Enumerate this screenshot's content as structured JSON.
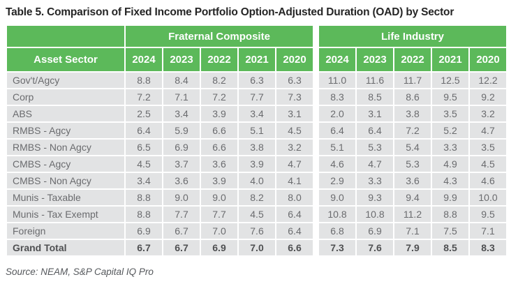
{
  "page": {
    "title": "Table 5. Comparison of Fixed Income Portfolio Option-Adjusted Duration (OAD) by Sector",
    "source": "Source: NEAM, S&P Capital IQ Pro"
  },
  "colors": {
    "header_green": "#5cb95a",
    "row_gray": "#e2e3e4",
    "header_text": "#ffffff",
    "data_text": "#6a6b6e",
    "title_text": "#252525"
  },
  "chart_data": {
    "type": "table",
    "title": "Table 5. Comparison of Fixed Income Portfolio Option-Adjusted Duration (OAD) by Sector",
    "asset_sector_label": "Asset Sector",
    "groups": [
      "Fraternal Composite",
      "Life Industry"
    ],
    "years": [
      "2024",
      "2023",
      "2022",
      "2021",
      "2020"
    ],
    "rows": [
      {
        "sector": "Gov't/Agcy",
        "fraternal": [
          8.8,
          8.4,
          8.2,
          6.3,
          6.3
        ],
        "life": [
          11.0,
          11.6,
          11.7,
          12.5,
          12.2
        ]
      },
      {
        "sector": "Corp",
        "fraternal": [
          7.2,
          7.1,
          7.2,
          7.7,
          7.3
        ],
        "life": [
          8.3,
          8.5,
          8.6,
          9.5,
          9.2
        ]
      },
      {
        "sector": "ABS",
        "fraternal": [
          2.5,
          3.4,
          3.9,
          3.4,
          3.1
        ],
        "life": [
          2.0,
          3.1,
          3.8,
          3.5,
          3.2
        ]
      },
      {
        "sector": "RMBS - Agcy",
        "fraternal": [
          6.4,
          5.9,
          6.6,
          5.1,
          4.5
        ],
        "life": [
          6.4,
          6.4,
          7.2,
          5.2,
          4.7
        ]
      },
      {
        "sector": "RMBS - Non Agcy",
        "fraternal": [
          6.5,
          6.9,
          6.6,
          3.8,
          3.2
        ],
        "life": [
          5.1,
          5.3,
          5.4,
          3.3,
          3.5
        ]
      },
      {
        "sector": "CMBS - Agcy",
        "fraternal": [
          4.5,
          3.7,
          3.6,
          3.9,
          4.7
        ],
        "life": [
          4.6,
          4.7,
          5.3,
          4.9,
          4.5
        ]
      },
      {
        "sector": "CMBS - Non Agcy",
        "fraternal": [
          3.4,
          3.6,
          3.9,
          4.0,
          4.1
        ],
        "life": [
          2.9,
          3.3,
          3.6,
          4.3,
          4.6
        ]
      },
      {
        "sector": "Munis - Taxable",
        "fraternal": [
          8.8,
          9.0,
          9.0,
          8.2,
          8.0
        ],
        "life": [
          9.0,
          9.3,
          9.4,
          9.9,
          10.0
        ]
      },
      {
        "sector": "Munis - Tax Exempt",
        "fraternal": [
          8.8,
          7.7,
          7.7,
          4.5,
          6.4
        ],
        "life": [
          10.8,
          10.8,
          11.2,
          8.8,
          9.5
        ]
      },
      {
        "sector": "Foreign",
        "fraternal": [
          6.9,
          6.7,
          7.0,
          7.6,
          6.4
        ],
        "life": [
          6.8,
          6.9,
          7.1,
          7.5,
          7.1
        ]
      }
    ],
    "grand_total": {
      "sector": "Grand Total",
      "fraternal": [
        6.7,
        6.7,
        6.9,
        7.0,
        6.6
      ],
      "life": [
        7.3,
        7.6,
        7.9,
        8.5,
        8.3
      ]
    }
  }
}
